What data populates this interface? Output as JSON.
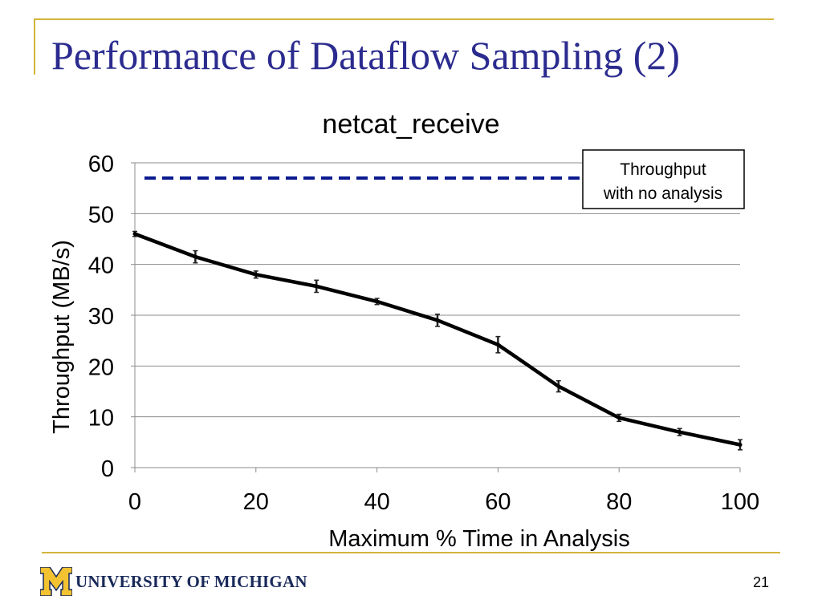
{
  "slide": {
    "title": "Performance of Dataflow Sampling (2)",
    "page_number": "21",
    "footer_logo_text": "University of Michigan",
    "footer_logo_display": "UNIVERSITY OF MICHIGAN",
    "logo_letter": "M",
    "colors": {
      "title": "#2b2b8f",
      "rule": "#d4b43a",
      "logo_gold": "#f2c230",
      "logo_navy": "#1a2a5a"
    }
  },
  "chart_data": {
    "type": "line",
    "title": "netcat_receive",
    "xlabel": "Maximum % Time in Analysis",
    "ylabel": "Throughput (MB/s)",
    "xlim": [
      0,
      100
    ],
    "ylim": [
      0,
      60
    ],
    "xticks": [
      0,
      20,
      40,
      60,
      80,
      100
    ],
    "yticks": [
      0,
      10,
      20,
      30,
      40,
      50,
      60
    ],
    "grid": true,
    "series": [
      {
        "name": "Throughput",
        "color": "#000000",
        "style": "solid",
        "x": [
          0,
          10,
          20,
          30,
          40,
          50,
          60,
          70,
          80,
          90,
          100
        ],
        "y": [
          46,
          41.5,
          38,
          35.7,
          32.7,
          29,
          24.2,
          16,
          9.8,
          7,
          4.5
        ],
        "err": [
          0.5,
          1.2,
          0.7,
          1.2,
          0.6,
          1.2,
          1.6,
          1.1,
          0.7,
          0.7,
          1.0
        ]
      },
      {
        "name": "Throughput with no analysis",
        "color": "#0a1a8f",
        "style": "dashed",
        "x": [
          0,
          100
        ],
        "y": [
          57,
          57
        ]
      }
    ],
    "annotations": [
      {
        "text_lines": [
          "Throughput",
          "with no analysis"
        ],
        "target_series": "Throughput with no analysis"
      }
    ]
  }
}
